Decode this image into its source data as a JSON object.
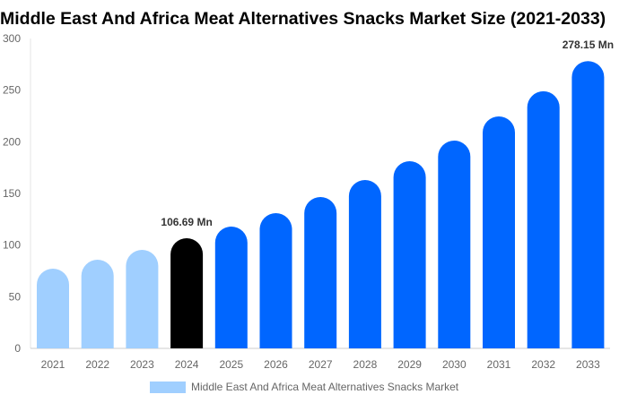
{
  "chart_data": {
    "type": "bar",
    "title": "Middle East And Africa Meat Alternatives Snacks Market Size (2021-2033)",
    "categories": [
      "2021",
      "2022",
      "2023",
      "2024",
      "2025",
      "2026",
      "2027",
      "2028",
      "2029",
      "2030",
      "2031",
      "2032",
      "2033"
    ],
    "series": [
      {
        "name": "Middle East And Africa Meat Alternatives Snacks Market",
        "values": [
          77.2,
          85.8,
          95.4,
          106.69,
          117.9,
          130.9,
          146.5,
          163.0,
          181.2,
          201.2,
          224.6,
          248.9,
          278.15
        ]
      }
    ],
    "data_labels": {
      "3": "106.69 Mn",
      "12": "278.15 Mn"
    },
    "ylim": [
      0,
      300
    ],
    "yticks": [
      0,
      50,
      100,
      150,
      200,
      250,
      300
    ],
    "xlabel": "",
    "ylabel": "",
    "grid": false,
    "legend_position": "bottom",
    "colors": {
      "historical": "#a0cfff",
      "base_year": "#000000",
      "forecast": "#0066ff"
    }
  }
}
